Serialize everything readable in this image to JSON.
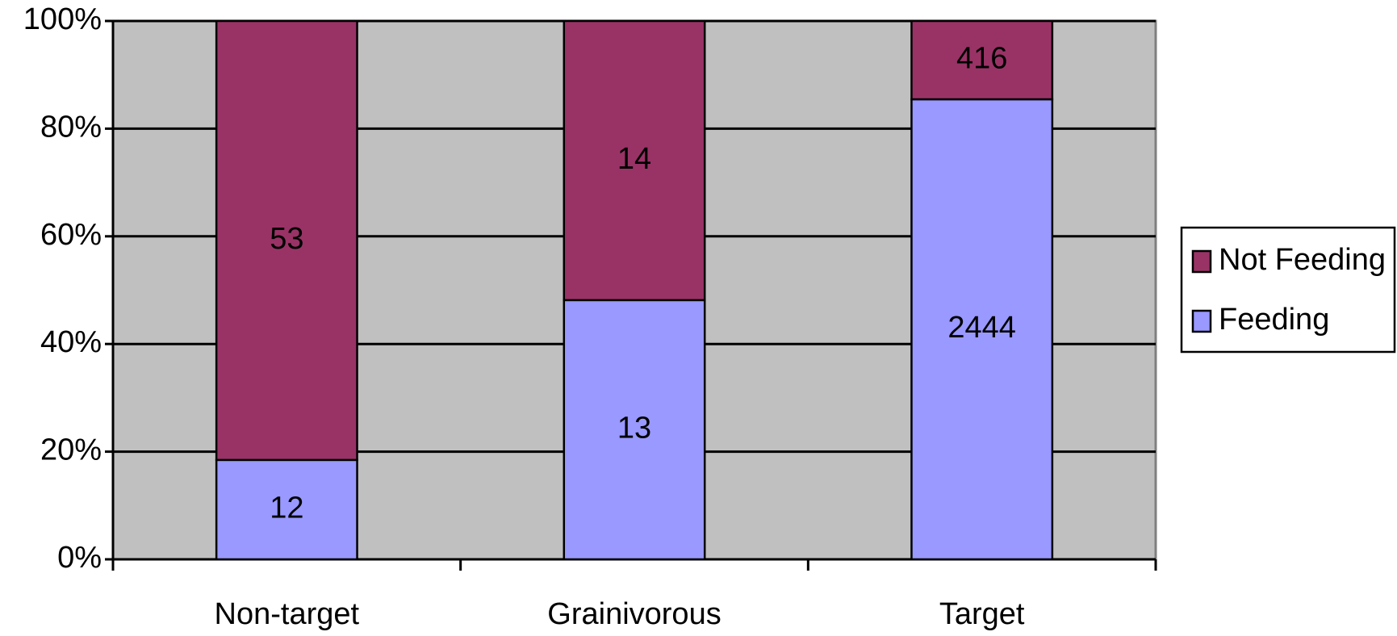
{
  "chart_data": {
    "type": "bar",
    "stack": "percent",
    "categories": [
      "Non-target",
      "Grainivorous",
      "Target"
    ],
    "series": [
      {
        "name": "Feeding",
        "color": "#9999ff",
        "values": [
          12,
          13,
          2444
        ]
      },
      {
        "name": "Not Feeding",
        "color": "#993366",
        "values": [
          53,
          14,
          416
        ]
      }
    ],
    "ylim": [
      0,
      100
    ],
    "yticks": [
      {
        "value": 0,
        "label": "0%"
      },
      {
        "value": 20,
        "label": "20%"
      },
      {
        "value": 40,
        "label": "40%"
      },
      {
        "value": 60,
        "label": "60%"
      },
      {
        "value": 80,
        "label": "80%"
      },
      {
        "value": 100,
        "label": "100%"
      }
    ],
    "grid": true,
    "legend": "right",
    "plot_background": "#c0c0c0"
  }
}
